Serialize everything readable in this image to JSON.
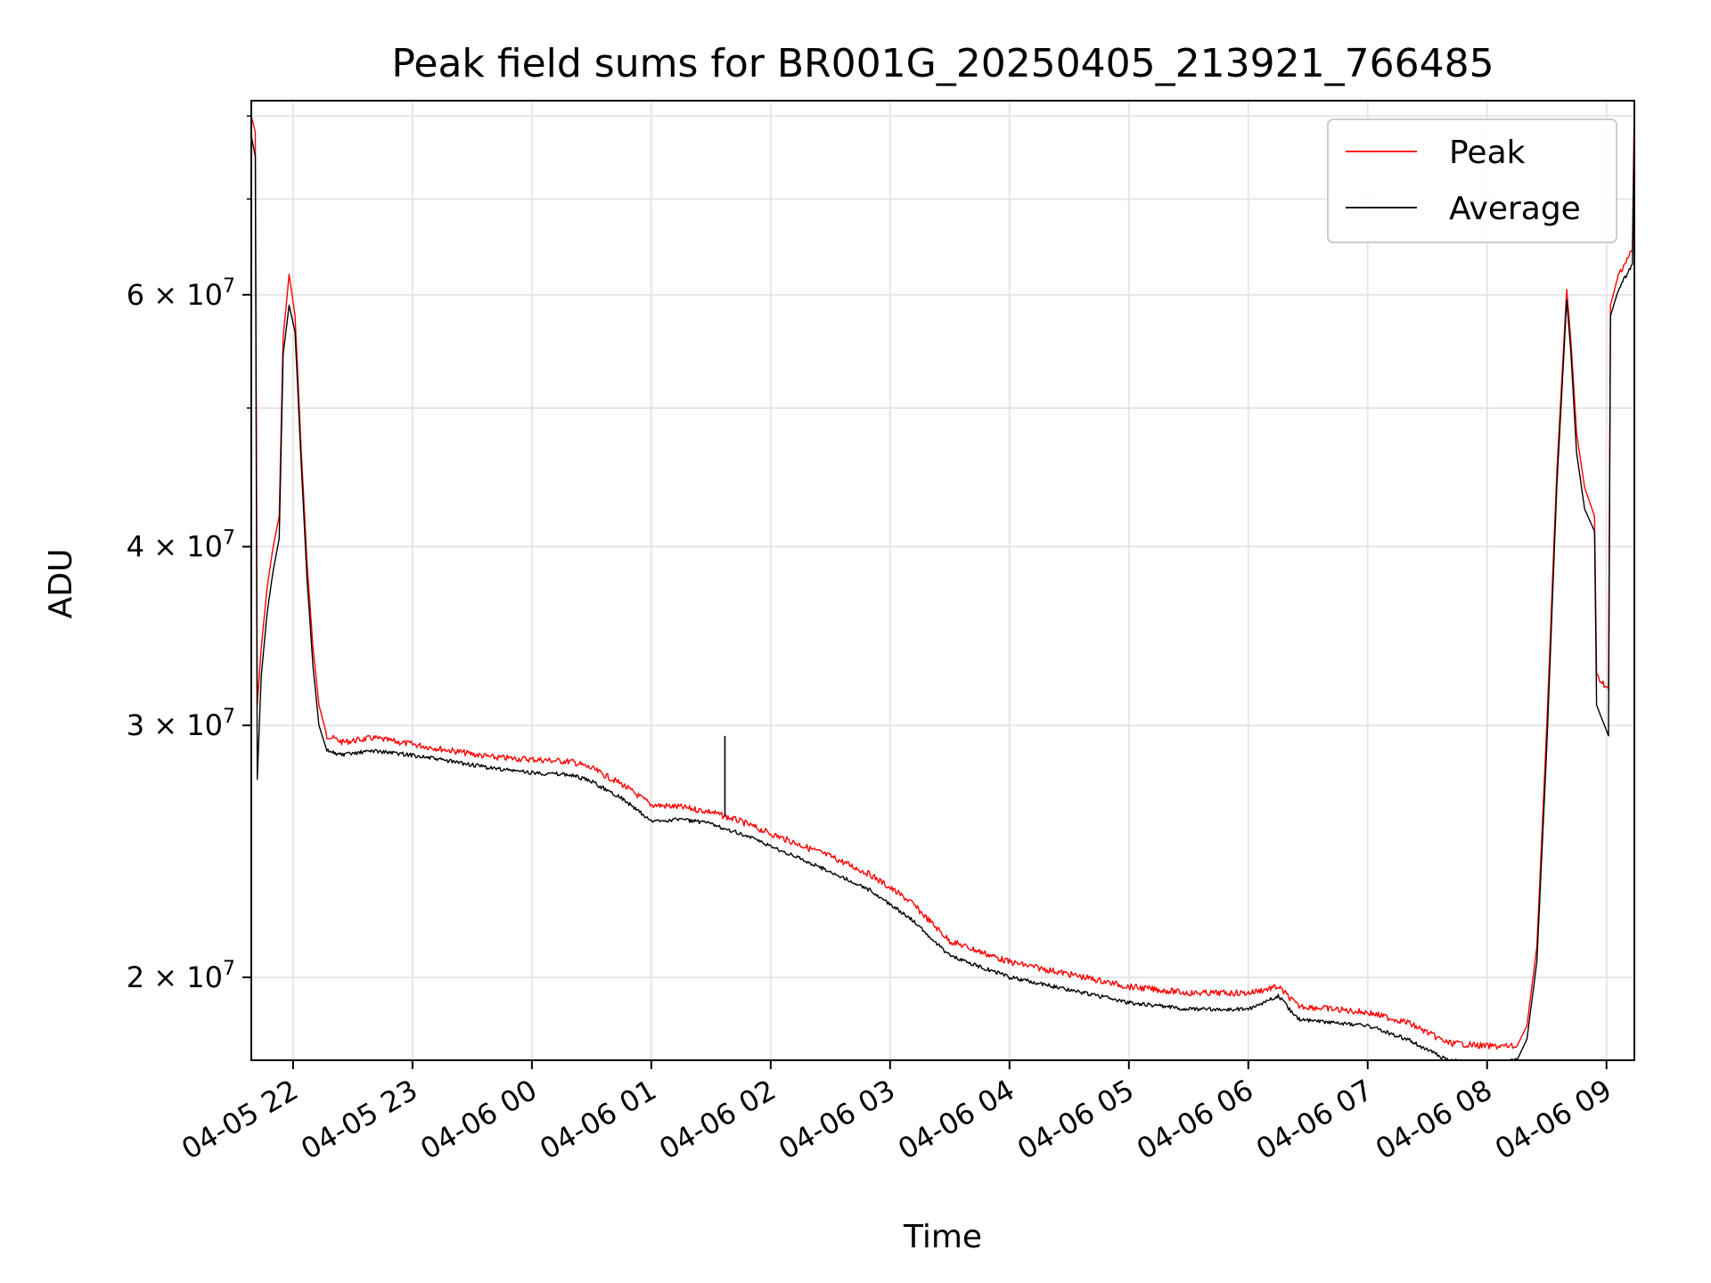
{
  "chart_data": {
    "type": "line",
    "title": "Peak field sums for BR001G_20250405_213921_766485",
    "xlabel": "Time",
    "ylabel": "ADU",
    "y_scale": "log",
    "ylim": [
      17500000,
      82000000
    ],
    "xlim": [
      "2025-04-05 21:39",
      "2025-04-06 09:14"
    ],
    "grid": true,
    "legend_position": "top-right",
    "x_ticks": [
      {
        "t": "2025-04-05 22:00",
        "label": "04-05 22"
      },
      {
        "t": "2025-04-05 23:00",
        "label": "04-05 23"
      },
      {
        "t": "2025-04-06 00:00",
        "label": "04-06 00"
      },
      {
        "t": "2025-04-06 01:00",
        "label": "04-06 01"
      },
      {
        "t": "2025-04-06 02:00",
        "label": "04-06 02"
      },
      {
        "t": "2025-04-06 03:00",
        "label": "04-06 03"
      },
      {
        "t": "2025-04-06 04:00",
        "label": "04-06 04"
      },
      {
        "t": "2025-04-06 05:00",
        "label": "04-06 05"
      },
      {
        "t": "2025-04-06 06:00",
        "label": "04-06 06"
      },
      {
        "t": "2025-04-06 07:00",
        "label": "04-06 07"
      },
      {
        "t": "2025-04-06 08:00",
        "label": "04-06 08"
      },
      {
        "t": "2025-04-06 09:00",
        "label": "04-06 09"
      }
    ],
    "y_ticks": [
      {
        "value": 20000000,
        "mantissa": "2",
        "exponent": "7"
      },
      {
        "value": 30000000,
        "mantissa": "3",
        "exponent": "7"
      },
      {
        "value": 40000000,
        "mantissa": "4",
        "exponent": "7"
      },
      {
        "value": 60000000,
        "mantissa": "6",
        "exponent": "7"
      }
    ],
    "y_minor_ticks": [
      50000000,
      70000000,
      80000000
    ],
    "series": [
      {
        "name": "Peak",
        "color": "#ff0000",
        "points": [
          [
            "2025-04-05 21:39",
            80000000
          ],
          [
            "2025-04-05 21:41",
            78000000
          ],
          [
            "2025-04-05 21:42",
            31000000
          ],
          [
            "2025-04-05 21:44",
            34000000
          ],
          [
            "2025-04-05 21:47",
            37500000
          ],
          [
            "2025-04-05 21:50",
            40000000
          ],
          [
            "2025-04-05 21:53",
            42000000
          ],
          [
            "2025-04-05 21:55",
            56000000
          ],
          [
            "2025-04-05 21:58",
            62000000
          ],
          [
            "2025-04-05 22:01",
            58000000
          ],
          [
            "2025-04-05 22:04",
            47000000
          ],
          [
            "2025-04-05 22:07",
            39000000
          ],
          [
            "2025-04-05 22:10",
            34000000
          ],
          [
            "2025-04-05 22:13",
            31000000
          ],
          [
            "2025-04-05 22:17",
            29500000
          ],
          [
            "2025-04-05 22:25",
            29200000
          ],
          [
            "2025-04-05 22:40",
            29400000
          ],
          [
            "2025-04-05 23:00",
            29100000
          ],
          [
            "2025-04-05 23:20",
            28800000
          ],
          [
            "2025-04-05 23:40",
            28500000
          ],
          [
            "2025-04-06 00:00",
            28400000
          ],
          [
            "2025-04-06 00:20",
            28300000
          ],
          [
            "2025-04-06 00:30",
            28000000
          ],
          [
            "2025-04-06 00:45",
            27300000
          ],
          [
            "2025-04-06 01:00",
            26400000
          ],
          [
            "2025-04-06 01:15",
            26300000
          ],
          [
            "2025-04-06 01:30",
            26100000
          ],
          [
            "2025-04-06 01:45",
            25700000
          ],
          [
            "2025-04-06 02:00",
            25200000
          ],
          [
            "2025-04-06 02:30",
            24300000
          ],
          [
            "2025-04-06 02:50",
            23600000
          ],
          [
            "2025-04-06 03:10",
            22600000
          ],
          [
            "2025-04-06 03:30",
            21200000
          ],
          [
            "2025-04-06 04:00",
            20500000
          ],
          [
            "2025-04-06 04:30",
            20100000
          ],
          [
            "2025-04-06 05:00",
            19700000
          ],
          [
            "2025-04-06 05:30",
            19500000
          ],
          [
            "2025-04-06 06:00",
            19500000
          ],
          [
            "2025-04-06 06:15",
            19700000
          ],
          [
            "2025-04-06 06:25",
            19100000
          ],
          [
            "2025-04-06 07:00",
            18900000
          ],
          [
            "2025-04-06 07:20",
            18600000
          ],
          [
            "2025-04-06 07:40",
            18000000
          ],
          [
            "2025-04-06 08:00",
            17900000
          ],
          [
            "2025-04-06 08:15",
            17900000
          ],
          [
            "2025-04-06 08:20",
            18500000
          ],
          [
            "2025-04-06 08:25",
            21000000
          ],
          [
            "2025-04-06 08:30",
            30000000
          ],
          [
            "2025-04-06 08:35",
            45000000
          ],
          [
            "2025-04-06 08:40",
            60500000
          ],
          [
            "2025-04-06 08:42",
            56000000
          ],
          [
            "2025-04-06 08:45",
            48000000
          ],
          [
            "2025-04-06 08:49",
            44000000
          ],
          [
            "2025-04-06 08:54",
            42000000
          ],
          [
            "2025-04-06 08:55",
            32500000
          ],
          [
            "2025-04-06 09:01",
            31800000
          ],
          [
            "2025-04-06 09:02",
            59000000
          ],
          [
            "2025-04-06 09:06",
            62000000
          ],
          [
            "2025-04-06 09:13",
            64500000
          ],
          [
            "2025-04-06 09:14",
            82000000
          ]
        ]
      },
      {
        "name": "Average",
        "color": "#000000",
        "points": [
          [
            "2025-04-05 21:39",
            77500000
          ],
          [
            "2025-04-05 21:41",
            75000000
          ],
          [
            "2025-04-05 21:42",
            27500000
          ],
          [
            "2025-04-05 21:44",
            32500000
          ],
          [
            "2025-04-05 21:47",
            36000000
          ],
          [
            "2025-04-05 21:50",
            38500000
          ],
          [
            "2025-04-05 21:53",
            40500000
          ],
          [
            "2025-04-05 21:55",
            54500000
          ],
          [
            "2025-04-05 21:58",
            59000000
          ],
          [
            "2025-04-05 22:01",
            56500000
          ],
          [
            "2025-04-05 22:04",
            46000000
          ],
          [
            "2025-04-05 22:07",
            38000000
          ],
          [
            "2025-04-05 22:10",
            33000000
          ],
          [
            "2025-04-05 22:13",
            30000000
          ],
          [
            "2025-04-05 22:17",
            28800000
          ],
          [
            "2025-04-05 22:25",
            28600000
          ],
          [
            "2025-04-05 22:40",
            28800000
          ],
          [
            "2025-04-05 23:00",
            28600000
          ],
          [
            "2025-04-05 23:20",
            28300000
          ],
          [
            "2025-04-05 23:40",
            28000000
          ],
          [
            "2025-04-06 00:00",
            27800000
          ],
          [
            "2025-04-06 00:20",
            27700000
          ],
          [
            "2025-04-06 00:30",
            27400000
          ],
          [
            "2025-04-06 00:45",
            26700000
          ],
          [
            "2025-04-06 01:00",
            25700000
          ],
          [
            "2025-04-06 01:15",
            25800000
          ],
          [
            "2025-04-06 01:30",
            25600000
          ],
          [
            "2025-04-06 01:45",
            25200000
          ],
          [
            "2025-04-06 02:00",
            24700000
          ],
          [
            "2025-04-06 02:30",
            23700000
          ],
          [
            "2025-04-06 02:50",
            23000000
          ],
          [
            "2025-04-06 03:10",
            22000000
          ],
          [
            "2025-04-06 03:30",
            20700000
          ],
          [
            "2025-04-06 04:00",
            20000000
          ],
          [
            "2025-04-06 04:30",
            19600000
          ],
          [
            "2025-04-06 05:00",
            19200000
          ],
          [
            "2025-04-06 05:30",
            19000000
          ],
          [
            "2025-04-06 06:00",
            19000000
          ],
          [
            "2025-04-06 06:15",
            19400000
          ],
          [
            "2025-04-06 06:25",
            18700000
          ],
          [
            "2025-04-06 07:00",
            18500000
          ],
          [
            "2025-04-06 07:20",
            18100000
          ],
          [
            "2025-04-06 07:40",
            17500000
          ],
          [
            "2025-04-06 08:00",
            17400000
          ],
          [
            "2025-04-06 08:15",
            17500000
          ],
          [
            "2025-04-06 08:20",
            18100000
          ],
          [
            "2025-04-06 08:25",
            20500000
          ],
          [
            "2025-04-06 08:30",
            29000000
          ],
          [
            "2025-04-06 08:35",
            44000000
          ],
          [
            "2025-04-06 08:40",
            59500000
          ],
          [
            "2025-04-06 08:42",
            55000000
          ],
          [
            "2025-04-06 08:45",
            46500000
          ],
          [
            "2025-04-06 08:49",
            42500000
          ],
          [
            "2025-04-06 08:54",
            41000000
          ],
          [
            "2025-04-06 08:55",
            31000000
          ],
          [
            "2025-04-06 09:01",
            29500000
          ],
          [
            "2025-04-06 09:02",
            58000000
          ],
          [
            "2025-04-06 09:06",
            60500000
          ],
          [
            "2025-04-06 09:13",
            63000000
          ],
          [
            "2025-04-06 09:14",
            80000000
          ]
        ]
      }
    ],
    "annotations": [
      {
        "series": "Average",
        "t": "2025-04-06 01:37",
        "value": 29500000,
        "note": "spike"
      }
    ]
  }
}
